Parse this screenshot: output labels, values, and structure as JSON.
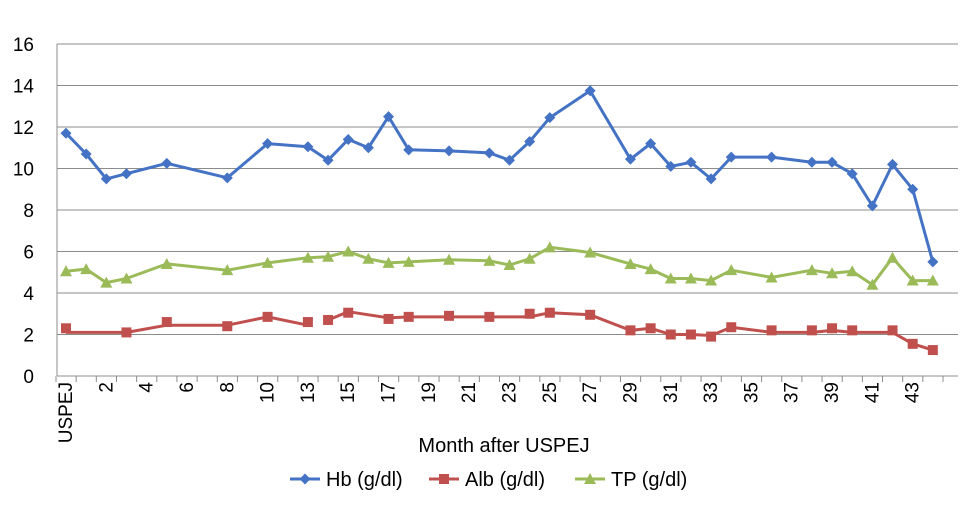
{
  "chart_data": {
    "type": "line",
    "title": "",
    "xlabel": "Month after USPEJ",
    "ylabel": "",
    "ylim": [
      0,
      16
    ],
    "yticks": [
      0,
      2,
      4,
      6,
      8,
      10,
      12,
      14,
      16
    ],
    "xlim": [
      0,
      44
    ],
    "grid": "horizontal",
    "legend": "bottom",
    "x_tick_labels": [
      {
        "x": 0,
        "label": "USPEJ"
      },
      {
        "x": 2,
        "label": "2"
      },
      {
        "x": 4,
        "label": "4"
      },
      {
        "x": 6,
        "label": "6"
      },
      {
        "x": 8,
        "label": "8"
      },
      {
        "x": 10,
        "label": "10"
      },
      {
        "x": 12,
        "label": "13"
      },
      {
        "x": 14,
        "label": "15"
      },
      {
        "x": 16,
        "label": "17"
      },
      {
        "x": 18,
        "label": "19"
      },
      {
        "x": 20,
        "label": "21"
      },
      {
        "x": 22,
        "label": "23"
      },
      {
        "x": 24,
        "label": "25"
      },
      {
        "x": 26,
        "label": "27"
      },
      {
        "x": 28,
        "label": "29"
      },
      {
        "x": 30,
        "label": "31"
      },
      {
        "x": 32,
        "label": "33"
      },
      {
        "x": 34,
        "label": "35"
      },
      {
        "x": 36,
        "label": "37"
      },
      {
        "x": 38,
        "label": "39"
      },
      {
        "x": 40,
        "label": "41"
      },
      {
        "x": 42,
        "label": "43"
      }
    ],
    "series": [
      {
        "name": "Hb (g/dl)",
        "color": "#4472C4",
        "marker": "diamond",
        "points": [
          [
            0,
            11.7
          ],
          [
            1,
            10.7
          ],
          [
            2,
            9.5
          ],
          [
            3,
            9.75
          ],
          [
            5,
            10.25
          ],
          [
            8,
            9.55
          ],
          [
            10,
            11.2
          ],
          [
            12,
            11.05
          ],
          [
            13,
            10.4
          ],
          [
            14,
            11.4
          ],
          [
            15,
            11.0
          ],
          [
            16,
            12.5
          ],
          [
            17,
            10.9
          ],
          [
            19,
            10.85
          ],
          [
            21,
            10.75
          ],
          [
            22,
            10.4
          ],
          [
            23,
            11.3
          ],
          [
            24,
            12.45
          ],
          [
            26,
            13.75
          ],
          [
            28,
            10.45
          ],
          [
            29,
            11.2
          ],
          [
            30,
            10.1
          ],
          [
            31,
            10.3
          ],
          [
            32,
            9.5
          ],
          [
            33,
            10.55
          ],
          [
            35,
            10.55
          ],
          [
            37,
            10.3
          ],
          [
            38,
            10.3
          ],
          [
            39,
            9.75
          ],
          [
            40,
            8.2
          ],
          [
            41,
            10.2
          ],
          [
            42,
            9.0
          ],
          [
            43,
            5.5
          ]
        ],
        "segments": [
          [
            0,
            32
          ]
        ]
      },
      {
        "name": "Alb (g/dl)",
        "color": "#C0504D",
        "marker": "square",
        "points": [
          [
            0,
            2.3
          ],
          [
            3,
            2.1
          ],
          [
            5,
            2.6
          ],
          [
            8,
            2.4
          ],
          [
            10,
            2.85
          ],
          [
            12,
            2.6
          ],
          [
            13,
            2.7
          ],
          [
            14,
            3.05
          ],
          [
            16,
            2.75
          ],
          [
            17,
            2.85
          ],
          [
            19,
            2.9
          ],
          [
            21,
            2.85
          ],
          [
            23,
            3.0
          ],
          [
            24,
            3.05
          ],
          [
            26,
            2.95
          ],
          [
            28,
            2.2
          ],
          [
            29,
            2.3
          ],
          [
            30,
            2.0
          ],
          [
            31,
            2.0
          ],
          [
            32,
            1.9
          ],
          [
            33,
            2.35
          ],
          [
            35,
            2.2
          ],
          [
            37,
            2.2
          ],
          [
            38,
            2.3
          ],
          [
            39,
            2.2
          ],
          [
            41,
            2.2
          ],
          [
            42,
            1.55
          ],
          [
            43,
            1.25
          ]
        ],
        "line": [
          [
            [
              0,
              2.1
            ],
            [
              3,
              2.1
            ],
            [
              5,
              2.45
            ],
            [
              8,
              2.45
            ],
            [
              10,
              2.85
            ],
            [
              12,
              2.45
            ]
          ],
          [
            [
              13,
              2.7
            ],
            [
              14,
              3.1
            ],
            [
              16,
              2.8
            ],
            [
              17,
              2.85
            ],
            [
              19,
              2.85
            ],
            [
              21,
              2.85
            ],
            [
              23,
              2.85
            ],
            [
              24,
              3.05
            ],
            [
              26,
              2.95
            ],
            [
              28,
              2.2
            ],
            [
              29,
              2.3
            ],
            [
              30,
              2.0
            ],
            [
              31,
              2.0
            ],
            [
              32,
              1.95
            ],
            [
              33,
              2.35
            ],
            [
              35,
              2.1
            ],
            [
              37,
              2.1
            ],
            [
              38,
              2.2
            ],
            [
              39,
              2.1
            ],
            [
              41,
              2.1
            ],
            [
              42,
              1.55
            ],
            [
              43,
              1.25
            ]
          ]
        ]
      },
      {
        "name": "TP (g/dl)",
        "color": "#9BBB59",
        "marker": "triangle",
        "points": [
          [
            0,
            5.05
          ],
          [
            1,
            5.15
          ],
          [
            2,
            4.5
          ],
          [
            3,
            4.7
          ],
          [
            5,
            5.4
          ],
          [
            8,
            5.1
          ],
          [
            10,
            5.45
          ],
          [
            12,
            5.7
          ],
          [
            13,
            5.75
          ],
          [
            14,
            6.0
          ],
          [
            15,
            5.65
          ],
          [
            16,
            5.45
          ],
          [
            17,
            5.5
          ],
          [
            19,
            5.6
          ],
          [
            21,
            5.55
          ],
          [
            22,
            5.35
          ],
          [
            23,
            5.65
          ],
          [
            24,
            6.2
          ],
          [
            26,
            5.95
          ],
          [
            28,
            5.4
          ],
          [
            29,
            5.15
          ],
          [
            30,
            4.7
          ],
          [
            31,
            4.7
          ],
          [
            32,
            4.6
          ],
          [
            33,
            5.1
          ],
          [
            35,
            4.75
          ],
          [
            37,
            5.1
          ],
          [
            38,
            4.95
          ],
          [
            39,
            5.05
          ],
          [
            40,
            4.4
          ],
          [
            41,
            5.7
          ],
          [
            42,
            4.6
          ],
          [
            43,
            4.6
          ]
        ]
      }
    ]
  }
}
